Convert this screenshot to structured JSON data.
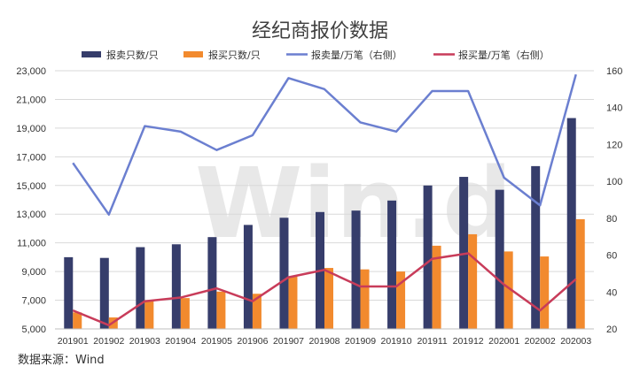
{
  "chart_data": {
    "type": "bar",
    "title": "经纪商报价数据",
    "source": "数据来源：Wind",
    "watermark": "Win.d",
    "categories": [
      "201901",
      "201902",
      "201903",
      "201904",
      "201905",
      "201906",
      "201907",
      "201908",
      "201909",
      "201910",
      "201911",
      "201912",
      "202001",
      "202002",
      "202003"
    ],
    "left_axis": {
      "min": 5000,
      "max": 23000,
      "step": 2000
    },
    "right_axis": {
      "min": 20,
      "max": 160,
      "step": 20
    },
    "legend_placement": "top",
    "series": [
      {
        "name": "报卖只数/只",
        "type": "bar",
        "axis": "left",
        "color": "#363d6b",
        "values": [
          10000,
          9950,
          10700,
          10900,
          11400,
          12250,
          12750,
          13150,
          13250,
          13950,
          15000,
          15600,
          14700,
          16350,
          19700
        ]
      },
      {
        "name": "报买只数/只",
        "type": "bar",
        "axis": "left",
        "color": "#f28a2e",
        "values": [
          6150,
          5800,
          7000,
          7150,
          7600,
          7450,
          8650,
          9250,
          9150,
          9000,
          10800,
          11600,
          10400,
          10050,
          12650
        ]
      },
      {
        "name": "报卖量/万笔（右侧）",
        "type": "line",
        "axis": "right",
        "color": "#6b7fd0",
        "values": [
          110,
          82,
          130,
          127,
          117,
          125,
          156,
          150,
          132,
          127,
          149,
          149,
          102,
          87,
          158
        ]
      },
      {
        "name": "报买量/万笔（右侧）",
        "type": "line",
        "axis": "right",
        "color": "#c83c5a",
        "values": [
          30,
          22,
          35,
          37,
          42,
          35,
          48,
          52,
          43,
          43,
          58,
          61,
          44,
          30,
          47
        ]
      }
    ]
  }
}
